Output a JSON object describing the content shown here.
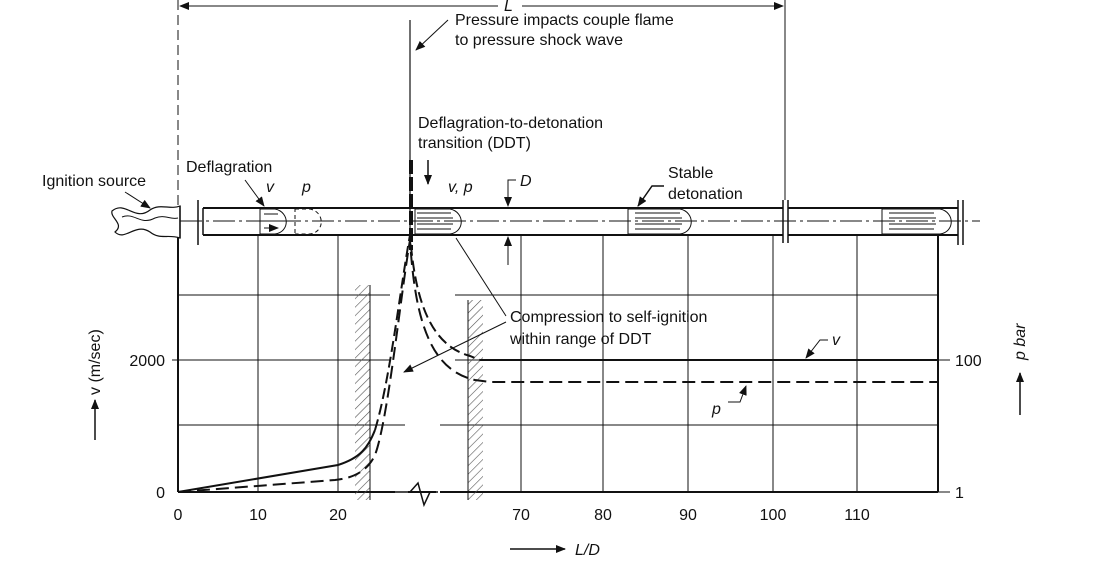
{
  "labels": {
    "length": "L",
    "pressure_impacts_1": "Pressure impacts couple flame",
    "pressure_impacts_2": "to pressure shock wave",
    "ddt_1": "Deflagration-to-detonation",
    "ddt_2": "transition (DDT)",
    "ignition_source": "Ignition source",
    "deflagration": "Deflagration",
    "v": "v",
    "p": "p",
    "vp": "v, p",
    "diameter": "D",
    "stable_1": "Stable",
    "stable_2": "detonation",
    "compression_1": "Compression to self-ignition",
    "compression_2": "within range of DDT",
    "curve_v": "v",
    "curve_p": "p"
  },
  "axes": {
    "left_label": "v (m/sec)",
    "left_ticks": [
      "0",
      "2000"
    ],
    "right_label": "p bar",
    "right_ticks": [
      "1",
      "100"
    ],
    "x_label": "L/D",
    "x_ticks": [
      "0",
      "10",
      "20",
      "70",
      "80",
      "90",
      "100",
      "110"
    ]
  }
}
